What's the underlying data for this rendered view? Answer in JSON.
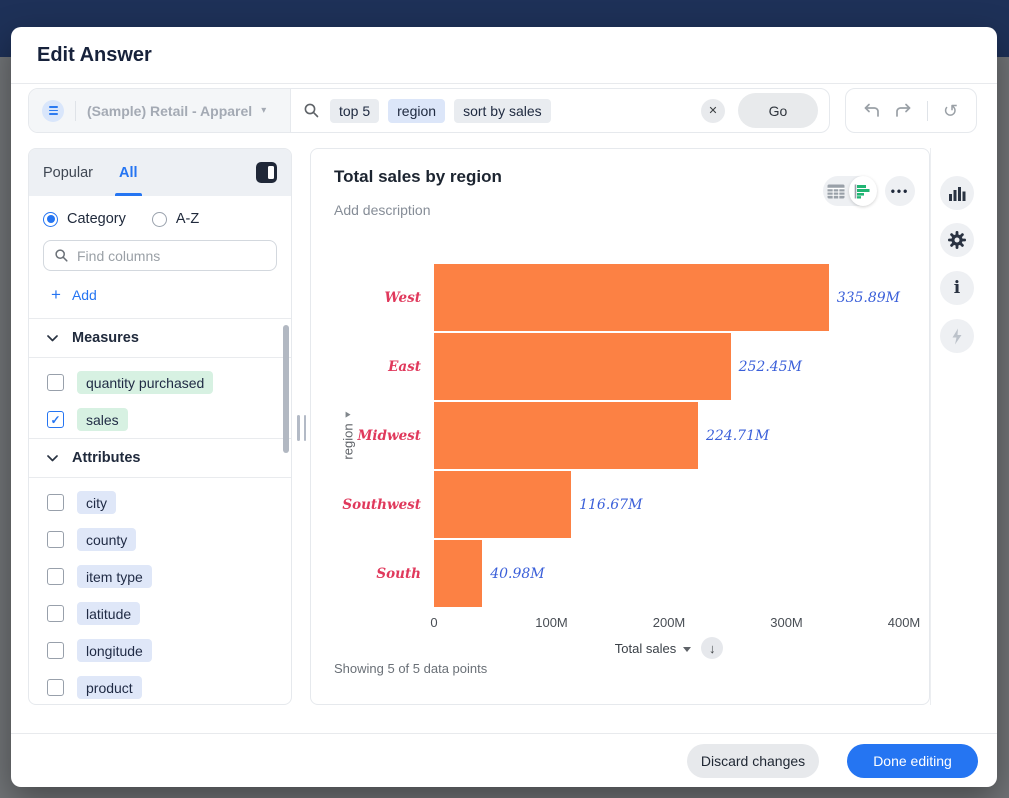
{
  "header": {
    "title": "Edit Answer"
  },
  "search": {
    "datasource": "(Sample) Retail - Apparel",
    "tokens": [
      {
        "text": "top 5",
        "type": "keyword"
      },
      {
        "text": "region",
        "type": "attribute"
      },
      {
        "text": "sort by sales",
        "type": "keyword"
      }
    ],
    "go_label": "Go"
  },
  "sidebar": {
    "tabs": [
      {
        "label": "Popular",
        "active": false
      },
      {
        "label": "All",
        "active": true
      }
    ],
    "sort_options": [
      {
        "label": "Category",
        "selected": true
      },
      {
        "label": "A-Z",
        "selected": false
      }
    ],
    "find_placeholder": "Find columns",
    "add_label": "Add",
    "sections": [
      {
        "title": "Measures",
        "kind": "measure",
        "items": [
          {
            "label": "quantity purchased",
            "checked": false
          },
          {
            "label": "sales",
            "checked": true
          }
        ]
      },
      {
        "title": "Attributes",
        "kind": "attribute",
        "items": [
          {
            "label": "city",
            "checked": false
          },
          {
            "label": "county",
            "checked": false
          },
          {
            "label": "item type",
            "checked": false
          },
          {
            "label": "latitude",
            "checked": false
          },
          {
            "label": "longitude",
            "checked": false
          },
          {
            "label": "product",
            "checked": false
          }
        ]
      }
    ]
  },
  "chart": {
    "title": "Total sales by region",
    "description_placeholder": "Add description",
    "status": "Showing 5 of 5 data points",
    "x_axis_title": "Total sales",
    "y_axis_title": "region"
  },
  "chart_data": {
    "type": "bar",
    "orientation": "horizontal",
    "title": "Total sales by region",
    "categories": [
      "West",
      "East",
      "Midwest",
      "Southwest",
      "South"
    ],
    "values": [
      335.89,
      252.45,
      224.71,
      116.67,
      40.98
    ],
    "unit": "M",
    "value_labels": [
      "335.89M",
      "252.45M",
      "224.71M",
      "116.67M",
      "40.98M"
    ],
    "xticks": [
      "0",
      "100M",
      "200M",
      "300M",
      "400M"
    ],
    "xlim": [
      0,
      400
    ],
    "xlabel": "Total sales",
    "ylabel": "region",
    "grid": false,
    "legend": "none",
    "sort": "descending"
  },
  "footer": {
    "discard_label": "Discard changes",
    "done_label": "Done editing"
  },
  "icons": {
    "reset": "↺",
    "close": "✕",
    "more": "•••",
    "caret_down": "▾",
    "down_arrow": "↓",
    "plus": "+",
    "check": "✓"
  },
  "colors": {
    "accent": "#2575f2",
    "bar": "#fc8144",
    "cat": "#e0395c",
    "val": "#3a5fd9",
    "measure_pill": "#d7f1e2",
    "attribute_pill": "#dfe7f8",
    "topbar": "#1e3158"
  }
}
